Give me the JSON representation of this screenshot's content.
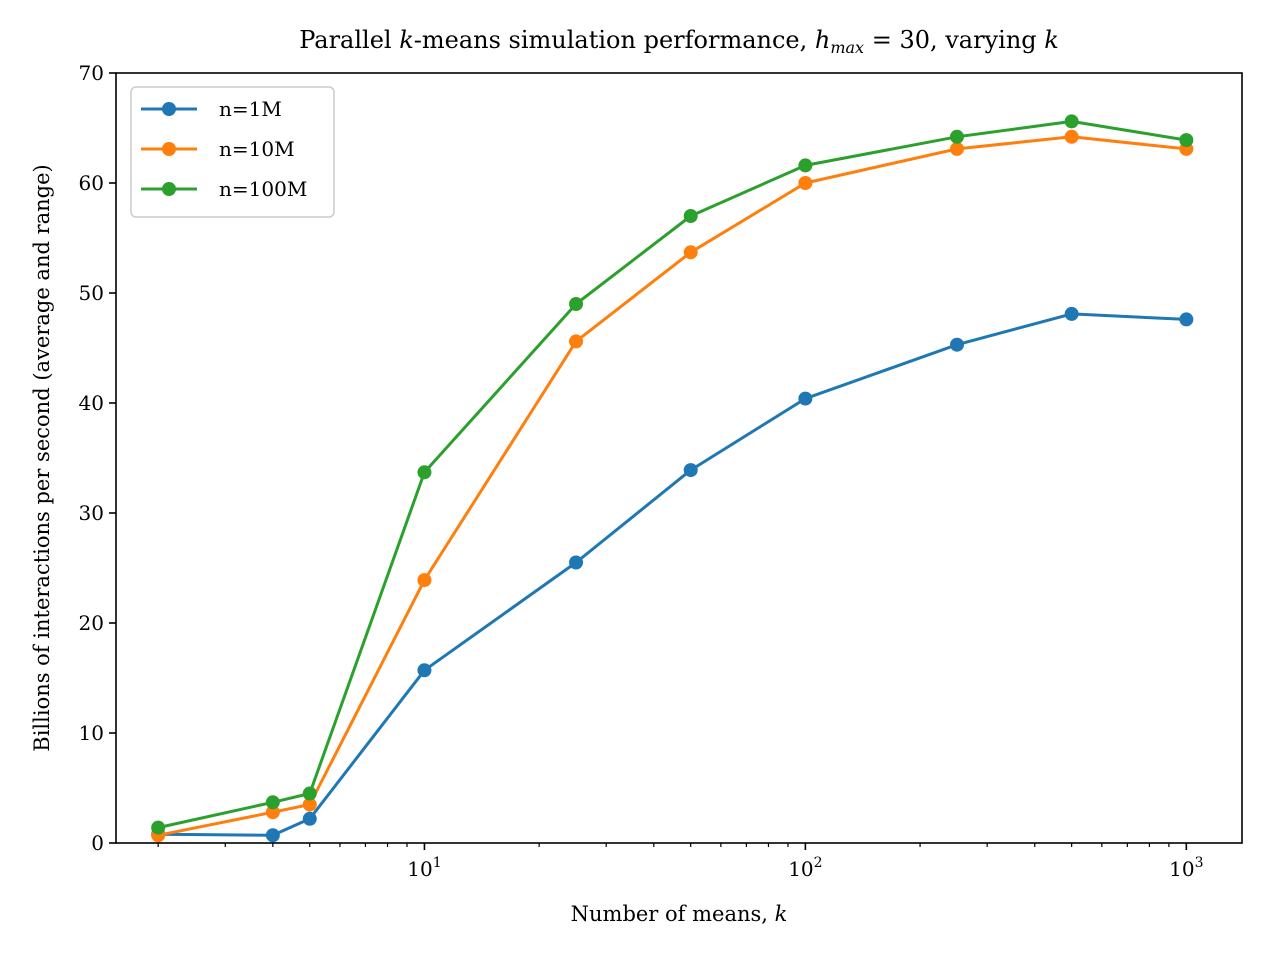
{
  "chart_data": {
    "type": "line",
    "title": "Parallel k-means simulation performance, h_max = 30, varying k",
    "title_parts": {
      "prefix": "Parallel ",
      "k1": "k",
      "middle": "-means simulation performance, ",
      "h": "h",
      "h_sub": "max",
      "equals_value": " = 30, varying ",
      "k2": "k"
    },
    "xlabel": "Number of means, k",
    "xlabel_parts": {
      "text": "Number of means, ",
      "var": "k"
    },
    "ylabel": "Billions of interactions per second (average and range)",
    "x_scale": "log",
    "xlim": [
      1.55,
      1400
    ],
    "ylim": [
      0,
      70
    ],
    "y_ticks": [
      0,
      10,
      20,
      30,
      40,
      50,
      60,
      70
    ],
    "x_major_ticks": [
      {
        "value": 10,
        "base": "10",
        "exp": "1"
      },
      {
        "value": 100,
        "base": "10",
        "exp": "2"
      },
      {
        "value": 1000,
        "base": "10",
        "exp": "3"
      }
    ],
    "x_minor_ticks": [
      2,
      3,
      4,
      5,
      6,
      7,
      8,
      9,
      20,
      30,
      40,
      50,
      60,
      70,
      80,
      90,
      200,
      300,
      400,
      500,
      600,
      700,
      800,
      900
    ],
    "grid": false,
    "legend_position": "top-left",
    "x": [
      2,
      4,
      5,
      10,
      25,
      50,
      100,
      250,
      500,
      1000
    ],
    "series": [
      {
        "name": "n=1M",
        "color": "#1f77b4",
        "values": [
          0.8,
          0.7,
          2.2,
          15.7,
          25.5,
          33.9,
          40.4,
          45.3,
          48.1,
          47.6
        ]
      },
      {
        "name": "n=10M",
        "color": "#ff7f0e",
        "values": [
          0.7,
          2.8,
          3.5,
          23.9,
          45.6,
          53.7,
          60.0,
          63.1,
          64.2,
          63.1
        ]
      },
      {
        "name": "n=100M",
        "color": "#2ca02c",
        "values": [
          1.4,
          3.7,
          4.5,
          33.7,
          49.0,
          57.0,
          61.6,
          64.2,
          65.6,
          63.9
        ]
      }
    ]
  }
}
